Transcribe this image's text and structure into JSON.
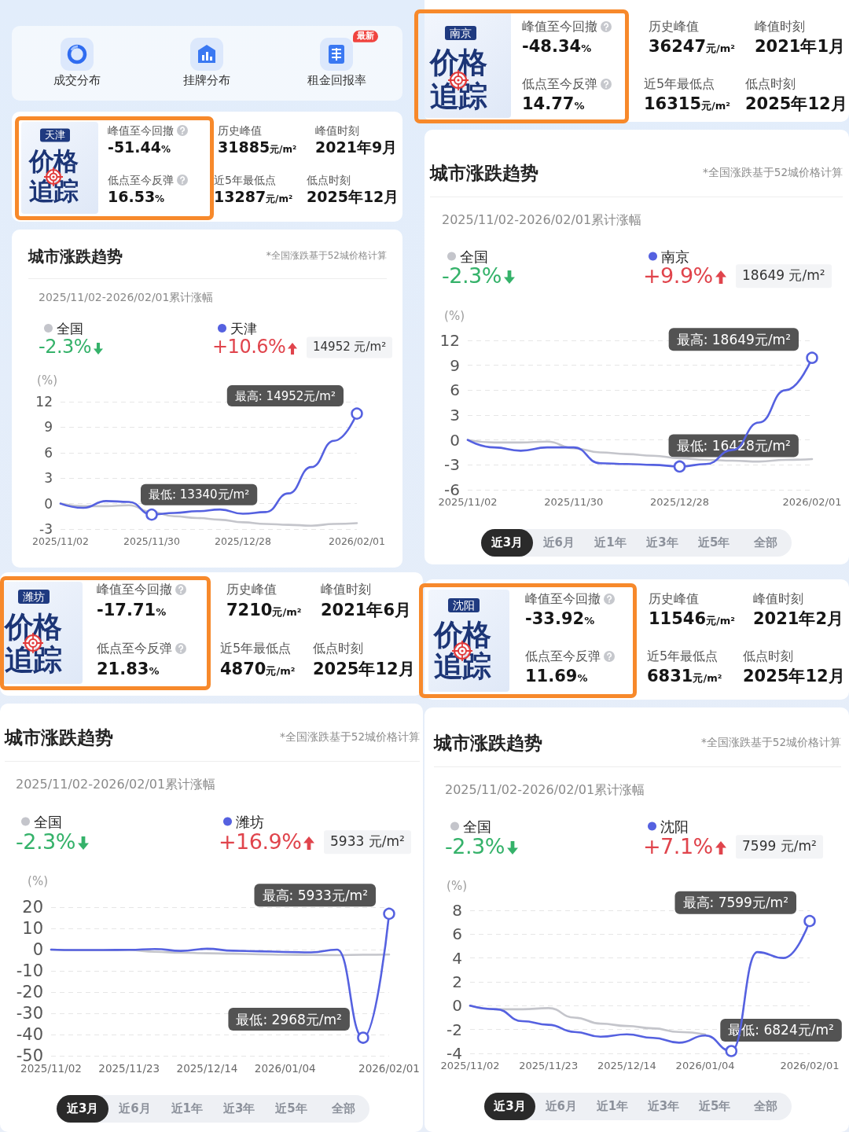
{
  "chart_data": [
    {
      "type": "other",
      "categories": [
        "成交分布",
        "挂牌分布",
        "租金回报率"
      ],
      "annotations": [
        "最新"
      ]
    },
    {
      "type": "other",
      "title": "价格追踪",
      "subtitle": "天津",
      "annotations": [
        "峰值至今回撤",
        "-51.44%",
        "低点至今反弹",
        "16.53%",
        "历史峰值",
        "31885元/m²",
        "峰值时刻",
        "2021年9月",
        "近5年最低点",
        "13287元/m²",
        "低点时刻",
        "2025年12月"
      ]
    },
    {
      "type": "line",
      "title": "城市涨跌趋势",
      "subtitle": "2025/11/02-2026/02/01累计涨幅",
      "ylabel": "(%)",
      "x": [
        "2025-11-02",
        "2025-11-09",
        "2025-11-16",
        "2025-11-23",
        "2025-11-30",
        "2025-12-07",
        "2025-12-14",
        "2025-12-21",
        "2025-12-28",
        "2026-01-04",
        "2026-01-11",
        "2026-01-18",
        "2026-01-25",
        "2026-02-01"
      ],
      "series": [
        {
          "name": "全国",
          "color": "#c4c5cb",
          "values": [
            0,
            -0.3,
            -0.3,
            -0.2,
            -1.0,
            -1.5,
            -1.7,
            -1.9,
            -2.2,
            -2.4,
            -2.5,
            -2.6,
            -2.4,
            -2.3
          ]
        },
        {
          "name": "天津",
          "color": "#5561e0",
          "values": [
            0,
            -0.5,
            0.3,
            0.2,
            -1.3,
            -1.1,
            -0.9,
            -0.7,
            -1.2,
            -1.0,
            1.2,
            4.3,
            7.4,
            10.6
          ]
        }
      ],
      "xlim": [
        "2025-11-02",
        "2026-02-01"
      ],
      "xticks": [
        {
          "value": "2025-11-02",
          "label": "2025/11/02"
        },
        {
          "value": "2025-11-30",
          "label": "2025/11/30"
        },
        {
          "value": "2025-12-28",
          "label": "2025/12/28"
        },
        {
          "value": "2026-02-01",
          "label": "2026/02/01"
        }
      ],
      "ylim": [
        -3,
        12
      ],
      "yticks": [
        -3,
        0,
        3,
        6,
        9,
        12
      ],
      "grid": "y",
      "legend": "top",
      "marker": "none",
      "line_style": "solid",
      "annotations": [
        "*全国涨跌基于52城价格计算",
        "-2.3%",
        "+10.6%",
        "14952 元/m²",
        {
          "text": "最高: 14952元/m²",
          "x": "2026-02-01",
          "y": 10.6
        },
        {
          "text": "最低: 13340元/m²",
          "x": "2025-11-30",
          "y": -1.3
        }
      ]
    },
    {
      "type": "other",
      "title": "价格追踪",
      "subtitle": "南京",
      "annotations": [
        "峰值至今回撤",
        "-48.34%",
        "低点至今反弹",
        "14.77%",
        "历史峰值",
        "36247元/m²",
        "峰值时刻",
        "2021年1月",
        "近5年最低点",
        "16315元/m²",
        "低点时刻",
        "2025年12月"
      ]
    },
    {
      "type": "line",
      "title": "城市涨跌趋势",
      "subtitle": "2025/11/02-2026/02/01累计涨幅",
      "ylabel": "(%)",
      "x": [
        "2025-11-02",
        "2025-11-09",
        "2025-11-16",
        "2025-11-23",
        "2025-11-30",
        "2025-12-07",
        "2025-12-14",
        "2025-12-21",
        "2025-12-28",
        "2026-01-04",
        "2026-01-11",
        "2026-01-18",
        "2026-01-25",
        "2026-02-01"
      ],
      "series": [
        {
          "name": "全国",
          "color": "#c4c5cb",
          "values": [
            0,
            -0.3,
            -0.3,
            -0.2,
            -1.0,
            -1.5,
            -1.7,
            -1.9,
            -2.2,
            -2.4,
            -2.5,
            -2.6,
            -2.4,
            -2.3
          ]
        },
        {
          "name": "南京",
          "color": "#5561e0",
          "values": [
            0,
            -0.9,
            -1.3,
            -0.9,
            -0.9,
            -2.8,
            -2.9,
            -3.0,
            -3.2,
            -2.9,
            -1.2,
            2.1,
            6.0,
            9.9
          ]
        }
      ],
      "xlim": [
        "2025-11-02",
        "2026-02-01"
      ],
      "xticks": [
        {
          "value": "2025-11-02",
          "label": "2025/11/02"
        },
        {
          "value": "2025-11-30",
          "label": "2025/11/30"
        },
        {
          "value": "2025-12-28",
          "label": "2025/12/28"
        },
        {
          "value": "2026-02-01",
          "label": "2026/02/01"
        }
      ],
      "ylim": [
        -6,
        12
      ],
      "yticks": [
        -6,
        -3,
        0,
        3,
        6,
        9,
        12
      ],
      "grid": "y",
      "legend": "top",
      "marker": "none",
      "line_style": "solid",
      "annotations": [
        "*全国涨跌基于52城价格计算",
        "-2.3%",
        "+9.9%",
        "18649 元/m²",
        {
          "text": "最高: 18649元/m²",
          "x": "2026-02-01",
          "y": 9.9
        },
        {
          "text": "最低: 16428元/m²",
          "x": "2025-12-28",
          "y": -3.2
        }
      ]
    },
    {
      "type": "other",
      "categories": [
        "近3月",
        "近6月",
        "近1年",
        "近3年",
        "近5年",
        "全部"
      ]
    },
    {
      "type": "other",
      "title": "价格追踪",
      "subtitle": "潍坊",
      "annotations": [
        "峰值至今回撤",
        "-17.71%",
        "低点至今反弹",
        "21.83%",
        "历史峰值",
        "7210元/m²",
        "峰值时刻",
        "2021年6月",
        "近5年最低点",
        "4870元/m²",
        "低点时刻",
        "2025年12月"
      ]
    },
    {
      "type": "line",
      "title": "城市涨跌趋势",
      "subtitle": "2025/11/02-2026/02/01累计涨幅",
      "ylabel": "(%)",
      "x": [
        "2025-11-02",
        "2025-11-09",
        "2025-11-16",
        "2025-11-23",
        "2025-11-30",
        "2025-12-07",
        "2025-12-14",
        "2025-12-21",
        "2025-12-28",
        "2026-01-04",
        "2026-01-11",
        "2026-01-18",
        "2026-01-25",
        "2026-02-01"
      ],
      "series": [
        {
          "name": "全国",
          "color": "#c4c5cb",
          "values": [
            0,
            -0.3,
            -0.3,
            -0.2,
            -1.0,
            -1.5,
            -1.7,
            -1.9,
            -2.2,
            -2.4,
            -2.5,
            -2.6,
            -2.4,
            -2.3
          ]
        },
        {
          "name": "潍坊",
          "color": "#5561e0",
          "values": [
            0,
            -0.2,
            -0.2,
            -0.1,
            0.3,
            -0.6,
            0.4,
            -0.5,
            -0.8,
            -1.1,
            -1.3,
            0.0,
            -41.5,
            16.9
          ]
        }
      ],
      "xlim": [
        "2025-11-02",
        "2026-02-01"
      ],
      "xticks": [
        {
          "value": "2025-11-02",
          "label": "2025/11/02"
        },
        {
          "value": "2025-11-23",
          "label": "2025/11/23"
        },
        {
          "value": "2025-12-14",
          "label": "2025/12/14"
        },
        {
          "value": "2026-01-04",
          "label": "2026/01/04"
        },
        {
          "value": "2026-02-01",
          "label": "2026/02/01"
        }
      ],
      "ylim": [
        -50,
        20
      ],
      "yticks": [
        -50,
        -40,
        -30,
        -20,
        -10,
        0,
        10,
        20
      ],
      "grid": "y",
      "legend": "top",
      "marker": "none",
      "line_style": "solid",
      "annotations": [
        "*全国涨跌基于52城价格计算",
        "-2.3%",
        "+16.9%",
        "5933 元/m²",
        {
          "text": "最高: 5933元/m²",
          "x": "2026-02-01",
          "y": 16.9
        },
        {
          "text": "最低: 2968元/m²",
          "x": "2026-01-25",
          "y": -41.5
        }
      ]
    },
    {
      "type": "other",
      "categories": [
        "近3月",
        "近6月",
        "近1年",
        "近3年",
        "近5年",
        "全部"
      ]
    },
    {
      "type": "other",
      "title": "价格追踪",
      "subtitle": "沈阳",
      "annotations": [
        "峰值至今回撤",
        "-33.92%",
        "低点至今反弹",
        "11.69%",
        "历史峰值",
        "11546元/m²",
        "峰值时刻",
        "2021年2月",
        "近5年最低点",
        "6831元/m²",
        "低点时刻",
        "2025年12月"
      ]
    },
    {
      "type": "line",
      "title": "城市涨跌趋势",
      "subtitle": "2025/11/02-2026/02/01累计涨幅",
      "ylabel": "(%)",
      "x": [
        "2025-11-02",
        "2025-11-09",
        "2025-11-16",
        "2025-11-23",
        "2025-11-30",
        "2025-12-07",
        "2025-12-14",
        "2025-12-21",
        "2025-12-28",
        "2026-01-04",
        "2026-01-11",
        "2026-01-18",
        "2026-01-25",
        "2026-02-01"
      ],
      "series": [
        {
          "name": "全国",
          "color": "#c4c5cb",
          "values": [
            0,
            -0.3,
            -0.3,
            -0.2,
            -1.0,
            -1.5,
            -1.7,
            -1.9,
            -2.2,
            -2.4,
            null,
            null,
            null,
            null
          ]
        },
        {
          "name": "沈阳",
          "color": "#5561e0",
          "values": [
            0,
            -0.3,
            -1.3,
            -1.6,
            -2.2,
            -2.6,
            -2.4,
            -2.7,
            -3.1,
            -2.5,
            -3.8,
            4.5,
            4.0,
            7.1
          ]
        }
      ],
      "xlim": [
        "2025-11-02",
        "2026-02-01"
      ],
      "xticks": [
        {
          "value": "2025-11-02",
          "label": "2025/11/02"
        },
        {
          "value": "2025-11-23",
          "label": "2025/11/23"
        },
        {
          "value": "2025-12-14",
          "label": "2025/12/14"
        },
        {
          "value": "2026-01-04",
          "label": "2026/01/04"
        },
        {
          "value": "2026-02-01",
          "label": "2026/02/01"
        }
      ],
      "ylim": [
        -4,
        8
      ],
      "yticks": [
        -4,
        -2,
        0,
        2,
        4,
        6,
        8
      ],
      "grid": "y",
      "legend": "top",
      "marker": "none",
      "line_style": "solid",
      "annotations": [
        "*全国涨跌基于52城价格计算",
        "-2.3%",
        "+7.1%",
        "7599 元/m²",
        {
          "text": "最高: 7599元/m²",
          "x": "2026-02-01",
          "y": 7.1
        },
        {
          "text": "最低: 6824元/m²",
          "x": "2026-01-11",
          "y": -3.8
        }
      ]
    },
    {
      "type": "other",
      "categories": [
        "近3月",
        "近6月",
        "近1年",
        "近3年",
        "近5年",
        "全部"
      ]
    }
  ]
}
